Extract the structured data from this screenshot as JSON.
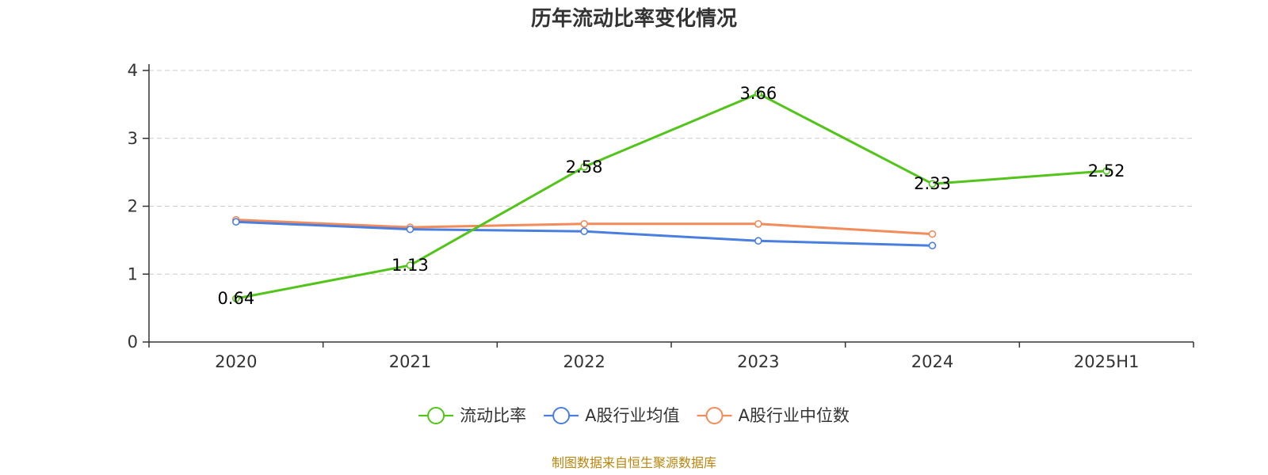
{
  "chart_data": {
    "type": "line",
    "title": "历年流动比率变化情况",
    "categories": [
      "2020",
      "2021",
      "2022",
      "2023",
      "2024",
      "2025H1"
    ],
    "ylim": [
      0,
      4
    ],
    "yticks": [
      "0",
      "1",
      "2",
      "3",
      "4"
    ],
    "grid": true,
    "legend_position": "bottom-center",
    "series": [
      {
        "name": "流动比率",
        "color": "#52c41a",
        "values": [
          0.64,
          1.13,
          2.58,
          3.66,
          2.33,
          2.52
        ],
        "labels": [
          "0.64",
          "1.13",
          "2.58",
          "3.66",
          "2.33",
          "2.52"
        ],
        "show_labels": true
      },
      {
        "name": "A股行业均值",
        "color": "#4a7fe0",
        "values": [
          1.77,
          1.66,
          1.63,
          1.49,
          1.42,
          null
        ],
        "show_labels": false
      },
      {
        "name": "A股行业中位数",
        "color": "#f28c5a",
        "values": [
          1.8,
          1.69,
          1.74,
          1.74,
          1.59,
          null
        ],
        "show_labels": false
      }
    ],
    "source": "制图数据来自恒生聚源数据库"
  }
}
